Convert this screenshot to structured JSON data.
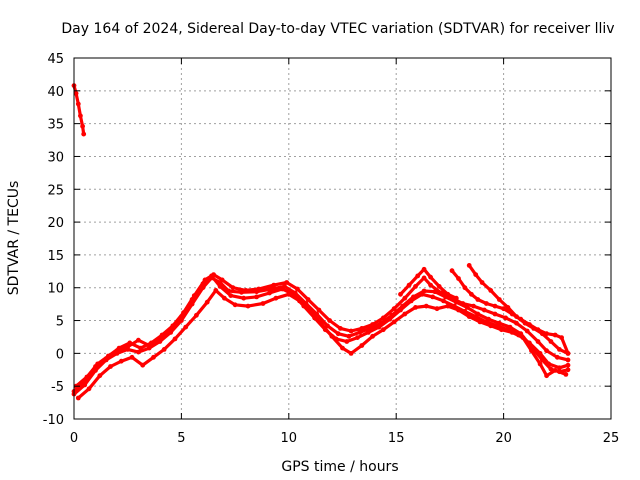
{
  "chart_data": {
    "type": "scatter",
    "title": "Day 164 of 2024, Sidereal Day-to-day VTEC variation (SDTVAR) for receiver lliv",
    "xlabel": "GPS time / hours",
    "ylabel": "SDTVAR / TECUs",
    "xlim": [
      0,
      25
    ],
    "ylim": [
      -10,
      45
    ],
    "xticks": [
      "0",
      "5",
      "10",
      "15",
      "20",
      "25"
    ],
    "yticks": [
      "-10",
      "-5",
      "0",
      "5",
      "10",
      "15",
      "20",
      "25",
      "30",
      "35",
      "40",
      "45"
    ],
    "grid": true,
    "color": "#ff0000",
    "series": [
      {
        "name": "track-1",
        "points": [
          [
            0.0,
            -6.2
          ],
          [
            0.5,
            -4.8
          ],
          [
            1.0,
            -2.6
          ],
          [
            1.5,
            -1.0
          ],
          [
            2.0,
            0.0
          ],
          [
            2.5,
            0.6
          ],
          [
            3.0,
            0.2
          ],
          [
            3.5,
            0.8
          ],
          [
            4.0,
            1.8
          ],
          [
            4.5,
            3.2
          ],
          [
            5.0,
            5.0
          ],
          [
            5.5,
            7.5
          ],
          [
            6.0,
            10.0
          ],
          [
            6.4,
            11.5
          ],
          [
            6.8,
            10.8
          ],
          [
            7.2,
            9.5
          ],
          [
            7.8,
            9.3
          ],
          [
            8.5,
            9.4
          ],
          [
            9.2,
            9.8
          ],
          [
            9.8,
            10.2
          ],
          [
            10.3,
            9.2
          ],
          [
            10.8,
            7.6
          ],
          [
            11.3,
            6.0
          ],
          [
            11.8,
            4.2
          ],
          [
            12.3,
            3.0
          ],
          [
            12.8,
            2.6
          ],
          [
            13.3,
            3.2
          ],
          [
            13.8,
            3.8
          ],
          [
            14.3,
            4.6
          ],
          [
            14.8,
            5.8
          ],
          [
            15.3,
            7.2
          ],
          [
            15.8,
            8.6
          ],
          [
            16.3,
            9.5
          ],
          [
            16.8,
            9.4
          ],
          [
            17.3,
            8.6
          ],
          [
            17.8,
            7.8
          ],
          [
            18.3,
            7.0
          ],
          [
            18.8,
            6.0
          ],
          [
            19.3,
            5.2
          ],
          [
            19.8,
            4.6
          ],
          [
            20.3,
            4.0
          ],
          [
            20.8,
            3.0
          ],
          [
            21.3,
            1.0
          ],
          [
            21.8,
            -1.0
          ],
          [
            22.2,
            -2.4
          ],
          [
            22.6,
            -2.8
          ],
          [
            23.0,
            -2.5
          ]
        ]
      },
      {
        "name": "track-2",
        "points": [
          [
            0.1,
            -5.0
          ],
          [
            0.6,
            -3.6
          ],
          [
            1.1,
            -1.6
          ],
          [
            1.6,
            -0.4
          ],
          [
            2.1,
            0.8
          ],
          [
            2.6,
            1.6
          ],
          [
            3.1,
            0.8
          ],
          [
            3.6,
            1.6
          ],
          [
            4.1,
            2.8
          ],
          [
            4.6,
            4.2
          ],
          [
            5.1,
            6.2
          ],
          [
            5.6,
            8.8
          ],
          [
            6.1,
            11.2
          ],
          [
            6.5,
            12.0
          ],
          [
            6.9,
            11.2
          ],
          [
            7.4,
            10.0
          ],
          [
            8.0,
            9.6
          ],
          [
            8.6,
            9.8
          ],
          [
            9.3,
            10.4
          ],
          [
            9.9,
            10.8
          ],
          [
            10.4,
            9.8
          ],
          [
            10.9,
            8.2
          ],
          [
            11.4,
            6.6
          ],
          [
            11.9,
            5.0
          ],
          [
            12.4,
            3.8
          ],
          [
            12.9,
            3.4
          ],
          [
            13.4,
            3.8
          ],
          [
            13.9,
            4.4
          ],
          [
            14.4,
            5.4
          ],
          [
            14.9,
            6.8
          ],
          [
            15.4,
            8.4
          ],
          [
            15.9,
            10.2
          ],
          [
            16.3,
            11.5
          ],
          [
            16.6,
            10.4
          ],
          [
            17.1,
            9.2
          ],
          [
            17.6,
            8.4
          ],
          [
            18.1,
            7.6
          ],
          [
            18.6,
            7.2
          ],
          [
            19.1,
            6.6
          ],
          [
            19.6,
            6.0
          ],
          [
            20.1,
            5.4
          ],
          [
            20.6,
            4.6
          ],
          [
            21.1,
            3.4
          ],
          [
            21.6,
            1.8
          ],
          [
            22.0,
            0.4
          ],
          [
            22.5,
            -0.6
          ],
          [
            23.0,
            -1.0
          ]
        ]
      },
      {
        "name": "track-3",
        "points": [
          [
            0.2,
            -6.8
          ],
          [
            0.7,
            -5.4
          ],
          [
            1.2,
            -3.4
          ],
          [
            1.7,
            -2.0
          ],
          [
            2.2,
            -1.2
          ],
          [
            2.7,
            -0.6
          ],
          [
            3.2,
            -1.8
          ],
          [
            3.7,
            -0.6
          ],
          [
            4.2,
            0.6
          ],
          [
            4.7,
            2.2
          ],
          [
            5.2,
            4.0
          ],
          [
            5.7,
            5.8
          ],
          [
            6.2,
            7.8
          ],
          [
            6.6,
            9.6
          ],
          [
            7.0,
            8.4
          ],
          [
            7.5,
            7.4
          ],
          [
            8.1,
            7.2
          ],
          [
            8.8,
            7.6
          ],
          [
            9.4,
            8.4
          ],
          [
            10.0,
            9.0
          ],
          [
            10.5,
            8.0
          ],
          [
            11.0,
            6.4
          ],
          [
            11.5,
            4.6
          ],
          [
            12.0,
            2.6
          ],
          [
            12.5,
            0.8
          ],
          [
            12.9,
            0.0
          ],
          [
            13.4,
            1.2
          ],
          [
            13.9,
            2.6
          ],
          [
            14.4,
            3.6
          ],
          [
            14.9,
            4.8
          ],
          [
            15.4,
            6.0
          ],
          [
            15.9,
            7.0
          ],
          [
            16.4,
            7.2
          ],
          [
            16.9,
            6.8
          ],
          [
            17.4,
            7.2
          ],
          [
            17.9,
            6.6
          ],
          [
            18.4,
            5.6
          ],
          [
            18.9,
            4.8
          ],
          [
            19.4,
            4.2
          ],
          [
            19.9,
            3.6
          ],
          [
            20.4,
            3.2
          ],
          [
            20.9,
            2.4
          ],
          [
            21.3,
            0.4
          ],
          [
            21.7,
            -1.6
          ],
          [
            22.0,
            -3.4
          ],
          [
            22.4,
            -2.6
          ],
          [
            22.9,
            -3.2
          ]
        ]
      },
      {
        "name": "track-4",
        "points": [
          [
            0.0,
            -5.8
          ],
          [
            0.5,
            -4.2
          ],
          [
            1.0,
            -2.0
          ],
          [
            1.5,
            -0.8
          ],
          [
            2.0,
            0.4
          ],
          [
            2.5,
            1.0
          ],
          [
            3.0,
            2.0
          ],
          [
            3.5,
            1.2
          ],
          [
            4.0,
            2.2
          ],
          [
            4.5,
            3.6
          ],
          [
            5.0,
            5.6
          ],
          [
            5.5,
            8.2
          ],
          [
            6.0,
            10.6
          ],
          [
            6.4,
            11.8
          ],
          [
            6.8,
            10.2
          ],
          [
            7.3,
            8.8
          ],
          [
            7.9,
            8.4
          ],
          [
            8.5,
            8.6
          ],
          [
            9.1,
            9.2
          ],
          [
            9.7,
            9.8
          ],
          [
            10.2,
            9.0
          ],
          [
            10.7,
            7.2
          ],
          [
            11.2,
            5.4
          ],
          [
            11.7,
            3.6
          ],
          [
            12.2,
            2.2
          ],
          [
            12.7,
            1.8
          ],
          [
            13.2,
            2.4
          ],
          [
            13.7,
            3.2
          ],
          [
            14.2,
            4.0
          ],
          [
            14.7,
            5.2
          ],
          [
            15.2,
            6.6
          ],
          [
            15.7,
            8.0
          ],
          [
            16.2,
            9.0
          ],
          [
            16.7,
            8.6
          ],
          [
            17.2,
            8.0
          ],
          [
            17.7,
            7.2
          ],
          [
            18.2,
            6.4
          ],
          [
            18.7,
            5.6
          ],
          [
            19.2,
            4.8
          ],
          [
            19.7,
            4.2
          ],
          [
            20.2,
            3.6
          ],
          [
            20.7,
            2.8
          ],
          [
            21.2,
            1.6
          ],
          [
            21.7,
            0.0
          ],
          [
            22.1,
            -1.6
          ],
          [
            22.6,
            -2.2
          ],
          [
            23.0,
            -1.8
          ]
        ]
      },
      {
        "name": "track-5",
        "points": [
          [
            17.6,
            12.6
          ],
          [
            17.9,
            11.4
          ],
          [
            18.2,
            10.0
          ],
          [
            18.5,
            9.0
          ],
          [
            18.8,
            8.2
          ],
          [
            19.2,
            7.6
          ],
          [
            19.6,
            7.2
          ],
          [
            20.0,
            6.8
          ],
          [
            20.4,
            6.0
          ],
          [
            20.8,
            5.2
          ],
          [
            21.2,
            4.4
          ],
          [
            21.6,
            3.6
          ],
          [
            22.0,
            3.0
          ],
          [
            22.4,
            2.8
          ],
          [
            22.7,
            2.4
          ],
          [
            23.0,
            0.0
          ]
        ]
      },
      {
        "name": "track-6",
        "points": [
          [
            18.4,
            13.4
          ],
          [
            18.7,
            12.0
          ],
          [
            19.0,
            10.8
          ],
          [
            19.4,
            9.6
          ],
          [
            19.8,
            8.2
          ],
          [
            20.2,
            7.0
          ],
          [
            20.6,
            5.6
          ],
          [
            21.0,
            4.6
          ],
          [
            21.4,
            3.8
          ],
          [
            21.8,
            3.0
          ],
          [
            22.2,
            1.8
          ],
          [
            22.6,
            0.6
          ],
          [
            23.0,
            0.0
          ]
        ]
      },
      {
        "name": "track-7",
        "points": [
          [
            15.2,
            9.0
          ],
          [
            15.6,
            10.4
          ],
          [
            16.0,
            11.8
          ],
          [
            16.3,
            12.8
          ],
          [
            16.6,
            11.6
          ],
          [
            17.0,
            10.2
          ],
          [
            17.4,
            9.0
          ],
          [
            17.8,
            8.4
          ]
        ]
      },
      {
        "name": "track-8",
        "points": [
          [
            0.0,
            40.8
          ],
          [
            0.1,
            39.6
          ],
          [
            0.2,
            38.0
          ],
          [
            0.3,
            36.2
          ],
          [
            0.4,
            34.6
          ],
          [
            0.45,
            33.4
          ]
        ]
      }
    ]
  }
}
